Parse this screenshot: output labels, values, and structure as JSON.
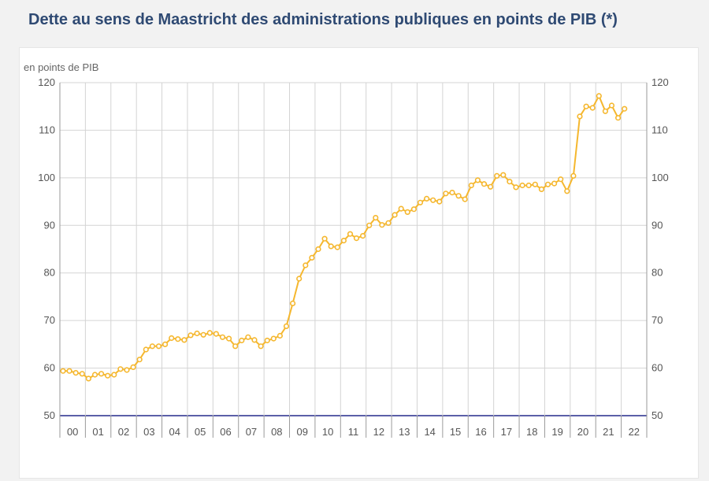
{
  "title": "Dette au sens de Maastricht des administrations publiques en points de PIB (*)",
  "chart_data": {
    "type": "line",
    "title": "Dette au sens de Maastricht des administrations publiques en points de PIB (*)",
    "ylabel": "en points de PIB",
    "xlabel": "",
    "ylim": [
      50,
      120
    ],
    "yticks": [
      50,
      60,
      70,
      80,
      90,
      100,
      110,
      120
    ],
    "year_labels": [
      "00",
      "01",
      "02",
      "03",
      "04",
      "05",
      "06",
      "07",
      "08",
      "09",
      "10",
      "11",
      "12",
      "13",
      "14",
      "15",
      "16",
      "17",
      "18",
      "19",
      "20",
      "21",
      "22"
    ],
    "frequency": "quarterly",
    "grid": true,
    "legend": "none",
    "colors": {
      "line": "#f5b72e",
      "marker_fill": "#ffffff",
      "axis": "#5b5fa8",
      "grid": "#d4d4d4"
    },
    "series": [
      {
        "values": [
          59.4,
          59.4,
          59.0,
          58.8,
          57.8,
          58.6,
          58.8,
          58.4,
          58.6,
          59.8,
          59.6,
          60.2,
          61.8,
          63.9,
          64.6,
          64.6,
          65.0,
          66.3,
          66.1,
          65.9,
          66.9,
          67.3,
          67.0,
          67.4,
          67.2,
          66.5,
          66.2,
          64.6,
          65.8,
          66.5,
          65.9,
          64.6,
          65.8,
          66.2,
          66.8,
          68.8,
          73.6,
          78.8,
          81.6,
          83.2,
          85.0,
          87.2,
          85.6,
          85.4,
          86.8,
          88.2,
          87.3,
          87.8,
          90.0,
          91.6,
          90.1,
          90.5,
          92.2,
          93.5,
          92.8,
          93.4,
          94.8,
          95.6,
          95.3,
          95.0,
          96.7,
          96.9,
          96.2,
          95.5,
          98.4,
          99.5,
          98.7,
          98.1,
          100.4,
          100.6,
          99.2,
          98.0,
          98.4,
          98.4,
          98.6,
          97.6,
          98.6,
          98.8,
          99.7,
          97.2,
          100.4,
          112.9,
          115.0,
          114.7,
          117.2,
          114.0,
          115.2,
          112.6,
          114.5
        ]
      }
    ]
  }
}
